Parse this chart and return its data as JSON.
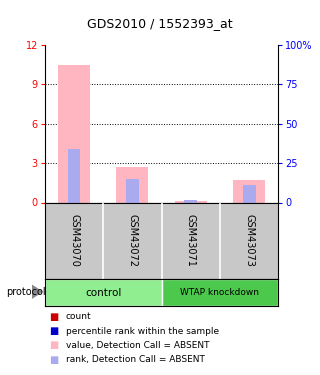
{
  "title": "GDS2010 / 1552393_at",
  "samples": [
    "GSM43070",
    "GSM43072",
    "GSM43071",
    "GSM43073"
  ],
  "value_absent": [
    10.5,
    2.7,
    0.12,
    1.75
  ],
  "rank_absent": [
    4.1,
    1.8,
    0.18,
    1.35
  ],
  "ylim_left": [
    0,
    12
  ],
  "ylim_right": [
    0,
    100
  ],
  "yticks_left": [
    0,
    3,
    6,
    9,
    12
  ],
  "yticks_right": [
    0,
    25,
    50,
    75,
    100
  ],
  "yticklabels_right": [
    "0",
    "25",
    "50",
    "75",
    "100%"
  ],
  "background_samples": "#C8C8C8",
  "background_group_control": "#90EE90",
  "background_group_knockdown": "#4CC94C",
  "pink": "#FFB6C1",
  "blue_light": "#AAAAEE",
  "legend_items": [
    {
      "color": "#CC0000",
      "label": "count"
    },
    {
      "color": "#0000CC",
      "label": "percentile rank within the sample"
    },
    {
      "color": "#FFB6C1",
      "label": "value, Detection Call = ABSENT"
    },
    {
      "color": "#AAAAEE",
      "label": "rank, Detection Call = ABSENT"
    }
  ],
  "bar_width": 0.55,
  "rank_bar_width": 0.22
}
